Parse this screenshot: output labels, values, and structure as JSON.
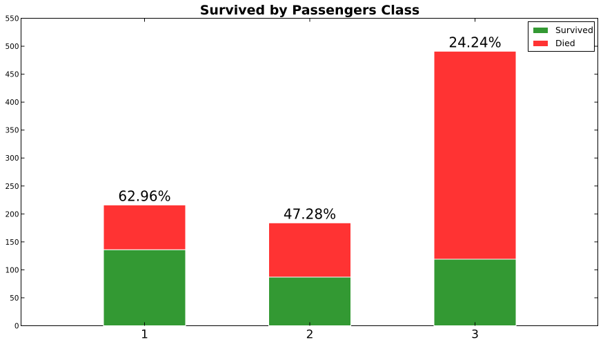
{
  "chart_data": {
    "type": "bar",
    "stacked": true,
    "title": "Survived by Passengers Class",
    "categories": [
      "1",
      "2",
      "3"
    ],
    "series": [
      {
        "name": "Survived",
        "values": [
          136,
          87,
          119
        ],
        "color": "#339933"
      },
      {
        "name": "Died",
        "values": [
          80,
          97,
          372
        ],
        "color": "#ff3333"
      }
    ],
    "bar_labels": [
      "62.96%",
      "47.28%",
      "24.24%"
    ],
    "xlabel": "",
    "ylabel": "",
    "ylim": [
      0,
      550
    ],
    "yticks": [
      0,
      50,
      100,
      150,
      200,
      250,
      300,
      350,
      400,
      450,
      500,
      550
    ],
    "grid": false,
    "legend_position": "top-right"
  }
}
